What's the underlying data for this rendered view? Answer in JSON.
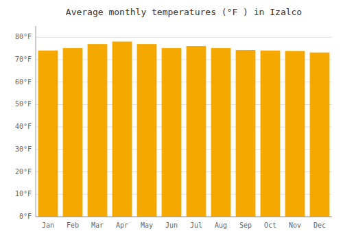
{
  "chart_data": {
    "type": "bar",
    "title": "Average monthly temperatures (°F ) in Izalco",
    "categories": [
      "Jan",
      "Feb",
      "Mar",
      "Apr",
      "May",
      "Jun",
      "Jul",
      "Aug",
      "Sep",
      "Oct",
      "Nov",
      "Dec"
    ],
    "values": [
      74.1,
      75.2,
      77.0,
      78.1,
      77.0,
      75.2,
      76.1,
      75.2,
      74.3,
      74.1,
      73.9,
      73.2
    ],
    "color": "#F5A800",
    "ylim": [
      0,
      85
    ],
    "yticks": [
      {
        "value": 0,
        "label": "0°F"
      },
      {
        "value": 10,
        "label": "10°F"
      },
      {
        "value": 20,
        "label": "20°F"
      },
      {
        "value": 30,
        "label": "30°F"
      },
      {
        "value": 40,
        "label": "40°F"
      },
      {
        "value": 50,
        "label": "50°F"
      },
      {
        "value": 60,
        "label": "60°F"
      },
      {
        "value": 70,
        "label": "70°F"
      },
      {
        "value": 80,
        "label": "80°F"
      }
    ],
    "grid": true
  }
}
